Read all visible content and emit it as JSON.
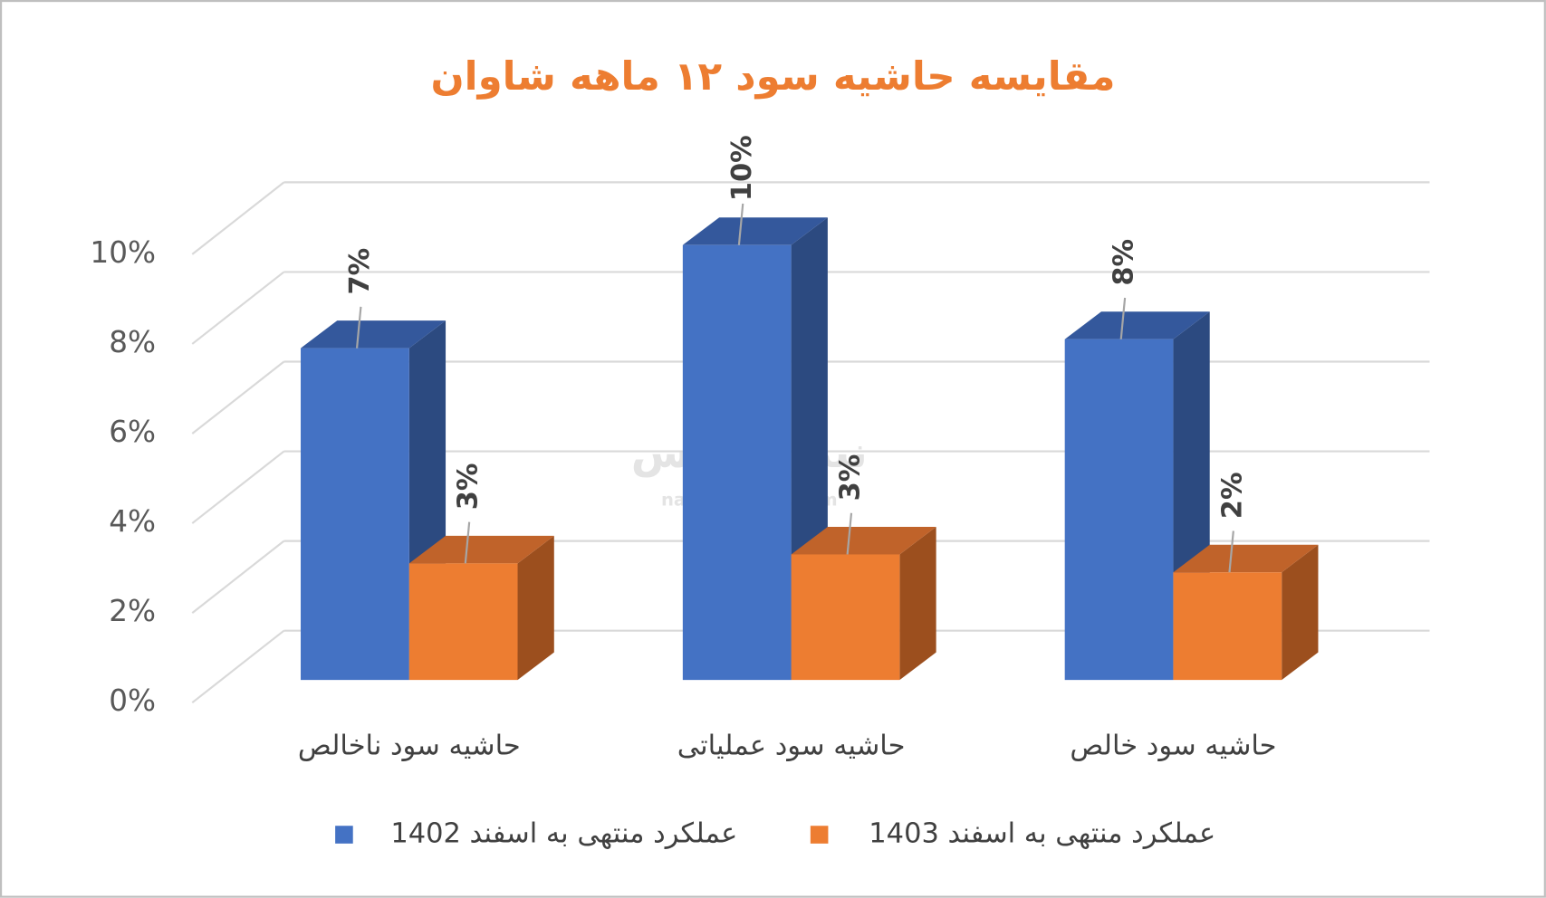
{
  "chart_data": {
    "type": "bar3d",
    "title": "مقایسه حاشیه سود ۱۲ ماهه شاوان",
    "watermark": [
      "نبض بورس",
      "nabzebourse.com"
    ],
    "categories": [
      "حاشیه سود ناخالص",
      "حاشیه سود عملیاتی",
      "حاشیه سود خالص"
    ],
    "series": [
      {
        "name": "عملکرد منتهی به اسفند 1402",
        "color": "#4472c4",
        "values": [
          7.4,
          9.7,
          7.6
        ],
        "value_labels": [
          "7%",
          "10%",
          "8%"
        ]
      },
      {
        "name": "عملکرد منتهی به اسفند 1403",
        "color": "#ed7d31",
        "values": [
          2.6,
          2.8,
          2.4
        ],
        "value_labels": [
          "3%",
          "3%",
          "2%"
        ]
      }
    ],
    "ylim": [
      0,
      10
    ],
    "yticks": [
      {
        "value": 0,
        "label": "0%"
      },
      {
        "value": 2,
        "label": "2%"
      },
      {
        "value": 4,
        "label": "4%"
      },
      {
        "value": 6,
        "label": "6%"
      },
      {
        "value": 8,
        "label": "8%"
      },
      {
        "value": 10,
        "label": "10%"
      }
    ],
    "grid": true,
    "legend": "bottom"
  }
}
